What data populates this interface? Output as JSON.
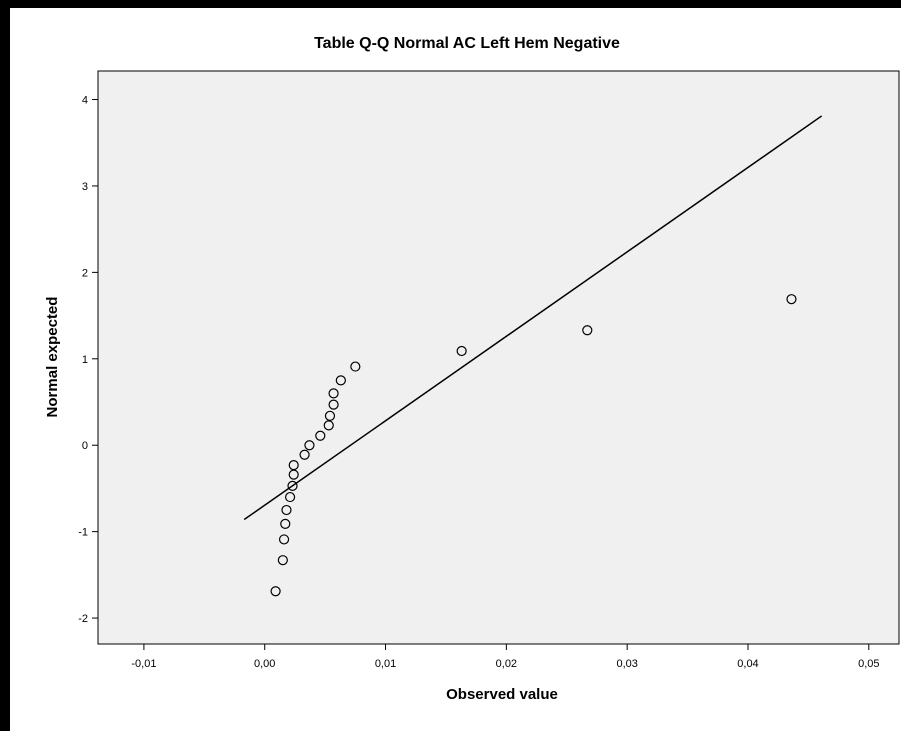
{
  "chart_data": {
    "type": "scatter",
    "title": "Table Q-Q Normal AC Left Hem Negative",
    "xlabel": "Observed value",
    "ylabel": "Normal expected",
    "xlim": [
      -0.0138,
      0.0525
    ],
    "ylim": [
      -2.3,
      4.33
    ],
    "x_ticks": [
      -0.01,
      0.0,
      0.01,
      0.02,
      0.03,
      0.04,
      0.05
    ],
    "x_tick_labels": [
      "-0,01",
      "0,00",
      "0,01",
      "0,02",
      "0,03",
      "0,04",
      "0,05"
    ],
    "y_ticks": [
      -2,
      -1,
      0,
      1,
      2,
      3,
      4
    ],
    "y_tick_labels": [
      "-2",
      "-1",
      "0",
      "1",
      "2",
      "3",
      "4"
    ],
    "grid": false,
    "background_color": "#f0f0f0",
    "points": [
      {
        "x": 0.0009,
        "y": -1.69
      },
      {
        "x": 0.0015,
        "y": -1.33
      },
      {
        "x": 0.0016,
        "y": -1.09
      },
      {
        "x": 0.0017,
        "y": -0.91
      },
      {
        "x": 0.0018,
        "y": -0.75
      },
      {
        "x": 0.0021,
        "y": -0.6
      },
      {
        "x": 0.0023,
        "y": -0.47
      },
      {
        "x": 0.0024,
        "y": -0.34
      },
      {
        "x": 0.0024,
        "y": -0.23
      },
      {
        "x": 0.0033,
        "y": -0.11
      },
      {
        "x": 0.0037,
        "y": 0.0
      },
      {
        "x": 0.0046,
        "y": 0.11
      },
      {
        "x": 0.0053,
        "y": 0.23
      },
      {
        "x": 0.0054,
        "y": 0.34
      },
      {
        "x": 0.0057,
        "y": 0.47
      },
      {
        "x": 0.0057,
        "y": 0.6
      },
      {
        "x": 0.0063,
        "y": 0.75
      },
      {
        "x": 0.0075,
        "y": 0.91
      },
      {
        "x": 0.0163,
        "y": 1.09
      },
      {
        "x": 0.0267,
        "y": 1.33
      },
      {
        "x": 0.0436,
        "y": 1.69
      }
    ],
    "reference_line": {
      "x": [
        -0.0017,
        0.0461
      ],
      "y": [
        -0.86,
        3.81
      ]
    }
  }
}
